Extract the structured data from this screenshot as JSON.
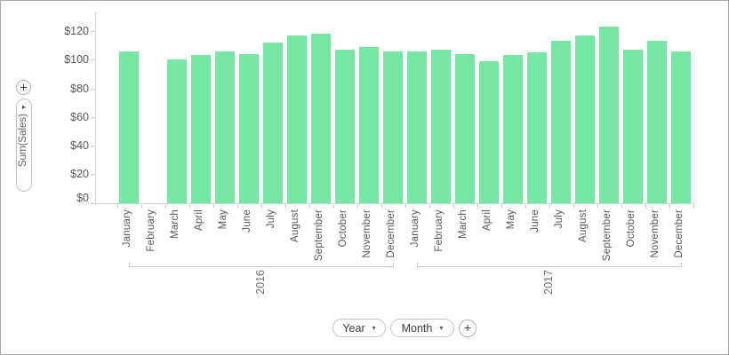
{
  "colors": {
    "bar": "#74e7a3",
    "axis": "#d2d2d2",
    "bracket": "#c6cbd4",
    "text": "#54585c",
    "border": "#a8a8a8"
  },
  "icons": {
    "add": "+",
    "caret_down": "▾",
    "caret_right": "▸"
  },
  "left_panel": {
    "value_field": {
      "label": "Sum(Sales)"
    }
  },
  "bottom_panel": {
    "argument_fields": [
      {
        "label": "Year"
      },
      {
        "label": "Month"
      }
    ]
  },
  "chart_data": {
    "type": "bar",
    "title": "",
    "ylabel": "Sum(Sales)",
    "xlabel": "",
    "grid": false,
    "legend": "none",
    "bar_color": "#74e7a3",
    "y_axis": {
      "ylim": [
        0,
        130
      ],
      "tick_values": [
        0,
        20,
        40,
        60,
        80,
        100,
        120
      ],
      "tick_labels": [
        "$0",
        "$20",
        "$40",
        "$60",
        "$80",
        "$100",
        "$120"
      ]
    },
    "categories": [
      "January",
      "February",
      "March",
      "April",
      "May",
      "June",
      "July",
      "August",
      "September",
      "October",
      "November",
      "December"
    ],
    "series": [
      {
        "name": "2016",
        "values": [
          106,
          null,
          100,
          103,
          106,
          104,
          112,
          117,
          118,
          107,
          109,
          106
        ]
      },
      {
        "name": "2017",
        "values": [
          106,
          107,
          104,
          99,
          103,
          105,
          113,
          117,
          123,
          107,
          113,
          106
        ]
      }
    ]
  }
}
